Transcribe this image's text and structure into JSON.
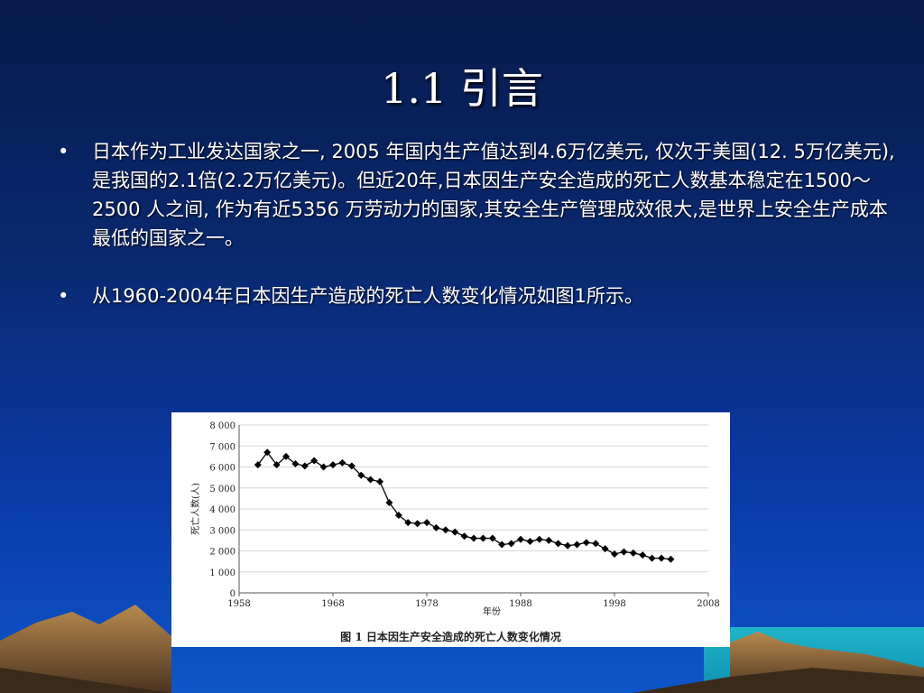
{
  "slide": {
    "title": "1.1 引言",
    "bullets": [
      {
        "text": "日本作为工业发达国家之一, 2005 年国内生产值达到4.6万亿美元, 仅次于美国(12. 5万亿美元),是我国的2.1倍(2.2万亿美元)。但近20年,日本因生产安全造成的死亡人数基本稳定在1500～2500 人之间, 作为有近5356 万劳动力的国家,其安全生产管理成效很大,是世界上安全生产成本最低的国家之一。"
      },
      {
        "text": "从1960-2004年日本因生产造成的死亡人数变化情况如图1所示。"
      }
    ],
    "bullet_symbol": "•"
  },
  "chart_data": {
    "type": "line",
    "title": "图 1   日本因生产安全造成的死亡人数变化情况",
    "xlabel": "年份",
    "ylabel": "死亡人数(人)",
    "xlim": [
      1958,
      2008
    ],
    "ylim": [
      0,
      8000
    ],
    "xticks": [
      1958,
      1968,
      1978,
      1988,
      1998,
      2008
    ],
    "yticks": [
      0,
      1000,
      2000,
      3000,
      4000,
      5000,
      6000,
      7000,
      8000
    ],
    "ytick_labels": [
      "0",
      "1 000",
      "2 000",
      "3 000",
      "4 000",
      "5 000",
      "6 000",
      "7 000",
      "8 000"
    ],
    "grid": "horizontal",
    "series": [
      {
        "marker": "diamond",
        "color": "#000000",
        "x": [
          1960,
          1961,
          1962,
          1963,
          1964,
          1965,
          1966,
          1967,
          1968,
          1969,
          1970,
          1971,
          1972,
          1973,
          1974,
          1975,
          1976,
          1977,
          1978,
          1979,
          1980,
          1981,
          1982,
          1983,
          1984,
          1985,
          1986,
          1987,
          1988,
          1989,
          1990,
          1991,
          1992,
          1993,
          1994,
          1995,
          1996,
          1997,
          1998,
          1999,
          2000,
          2001,
          2002,
          2003,
          2004
        ],
        "y": [
          6100,
          6700,
          6100,
          6500,
          6150,
          6050,
          6300,
          6000,
          6100,
          6200,
          6050,
          5600,
          5400,
          5300,
          4300,
          3700,
          3350,
          3300,
          3350,
          3100,
          3000,
          2900,
          2700,
          2600,
          2600,
          2600,
          2300,
          2350,
          2550,
          2450,
          2550,
          2500,
          2350,
          2250,
          2300,
          2400,
          2350,
          2100,
          1850,
          1950,
          1900,
          1800,
          1650,
          1650,
          1600
        ]
      }
    ]
  }
}
